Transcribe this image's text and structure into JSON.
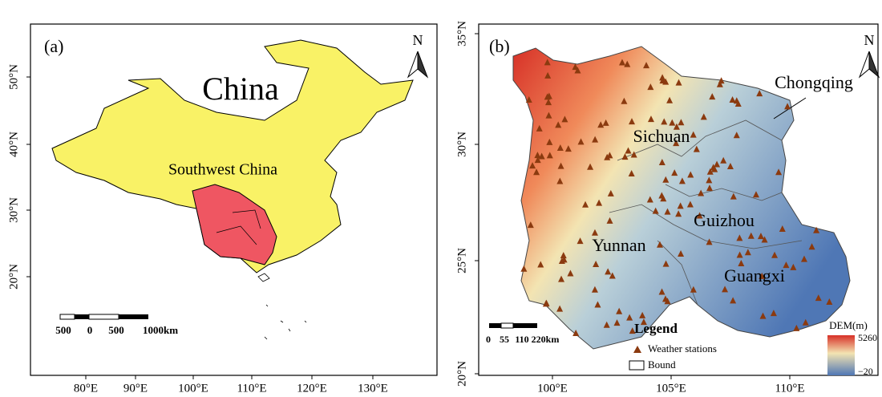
{
  "panels": [
    {
      "label": "(a)",
      "title": "China",
      "region_label": "Southwest China",
      "north": "N",
      "x_ticks": [
        "80°E",
        "90°E",
        "100°E",
        "110°E",
        "120°E",
        "130°E"
      ],
      "y_ticks": [
        "20°N",
        "30°N",
        "40°N",
        "50°N"
      ],
      "scale_bar": [
        "500",
        "0",
        "500",
        "1000km"
      ]
    },
    {
      "label": "(b)",
      "north": "N",
      "provinces": [
        "Chongqing",
        "Sichuan",
        "Guizhou",
        "Yunnan",
        "Guangxi"
      ],
      "x_ticks": [
        "100°E",
        "105°E",
        "110°E"
      ],
      "y_ticks": [
        "20°N",
        "25°N",
        "30°N",
        "35°N"
      ],
      "scale_bar": [
        "0",
        "55",
        "110",
        "220km"
      ],
      "legend": {
        "title": "Legend",
        "items": [
          "Weather stations",
          "Bound"
        ]
      },
      "colorbar": {
        "title": "DEM(m)",
        "max": "5260",
        "min": "−20"
      }
    }
  ]
}
